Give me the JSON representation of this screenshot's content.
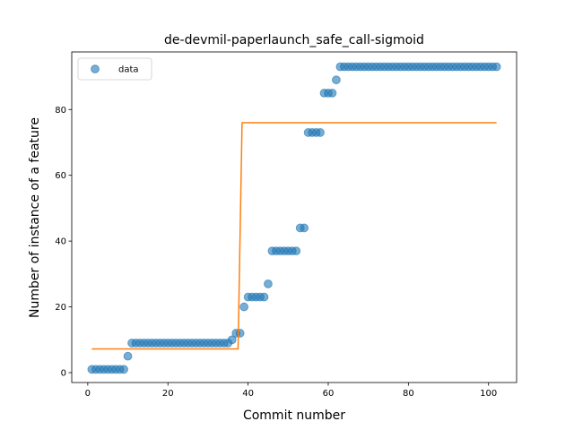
{
  "chart_data": {
    "type": "scatter",
    "title": "de-devmil-paperlaunch_safe_call-sigmoid",
    "xlabel": "Commit number",
    "ylabel": "Number of instance of a feature",
    "xlim": [
      -4,
      107
    ],
    "ylim": [
      -3,
      97.5
    ],
    "xticks": [
      0,
      20,
      40,
      60,
      80,
      100
    ],
    "yticks": [
      0,
      20,
      40,
      60,
      80
    ],
    "grid": false,
    "legend": {
      "position": "top-left",
      "entries": [
        "data"
      ]
    },
    "colors": {
      "data": "#1f77b4",
      "fit": "#ff7f0e"
    },
    "series": [
      {
        "name": "data",
        "kind": "scatter",
        "x": [
          1,
          2,
          3,
          4,
          5,
          6,
          7,
          8,
          9,
          10,
          11,
          12,
          13,
          14,
          15,
          16,
          17,
          18,
          19,
          20,
          21,
          22,
          23,
          24,
          25,
          26,
          27,
          28,
          29,
          30,
          31,
          32,
          33,
          34,
          35,
          36,
          37,
          38,
          39,
          40,
          41,
          42,
          43,
          44,
          45,
          46,
          47,
          48,
          49,
          50,
          51,
          52,
          53,
          54,
          55,
          56,
          57,
          58,
          59,
          60,
          61,
          62,
          63,
          64,
          65,
          66,
          67,
          68,
          69,
          70,
          71,
          72,
          73,
          74,
          75,
          76,
          77,
          78,
          79,
          80,
          81,
          82,
          83,
          84,
          85,
          86,
          87,
          88,
          89,
          90,
          91,
          92,
          93,
          94,
          95,
          96,
          97,
          98,
          99,
          100,
          101,
          102
        ],
        "y": [
          1,
          1,
          1,
          1,
          1,
          1,
          1,
          1,
          1,
          5,
          9,
          9,
          9,
          9,
          9,
          9,
          9,
          9,
          9,
          9,
          9,
          9,
          9,
          9,
          9,
          9,
          9,
          9,
          9,
          9,
          9,
          9,
          9,
          9,
          9,
          10,
          12,
          12,
          20,
          23,
          23,
          23,
          23,
          23,
          27,
          37,
          37,
          37,
          37,
          37,
          37,
          37,
          44,
          44,
          73,
          73,
          73,
          73,
          85,
          85,
          85,
          89,
          93,
          93,
          93,
          93,
          93,
          93,
          93,
          93,
          93,
          93,
          93,
          93,
          93,
          93,
          93,
          93,
          93,
          93,
          93,
          93,
          93,
          93,
          93,
          93,
          93,
          93,
          93,
          93,
          93,
          93,
          93,
          93,
          93,
          93,
          93,
          93,
          93,
          93,
          93,
          93
        ]
      },
      {
        "name": "",
        "kind": "line",
        "x": [
          1,
          37.5,
          38.5,
          102
        ],
        "y": [
          7.2,
          7.2,
          76,
          76
        ]
      }
    ]
  }
}
